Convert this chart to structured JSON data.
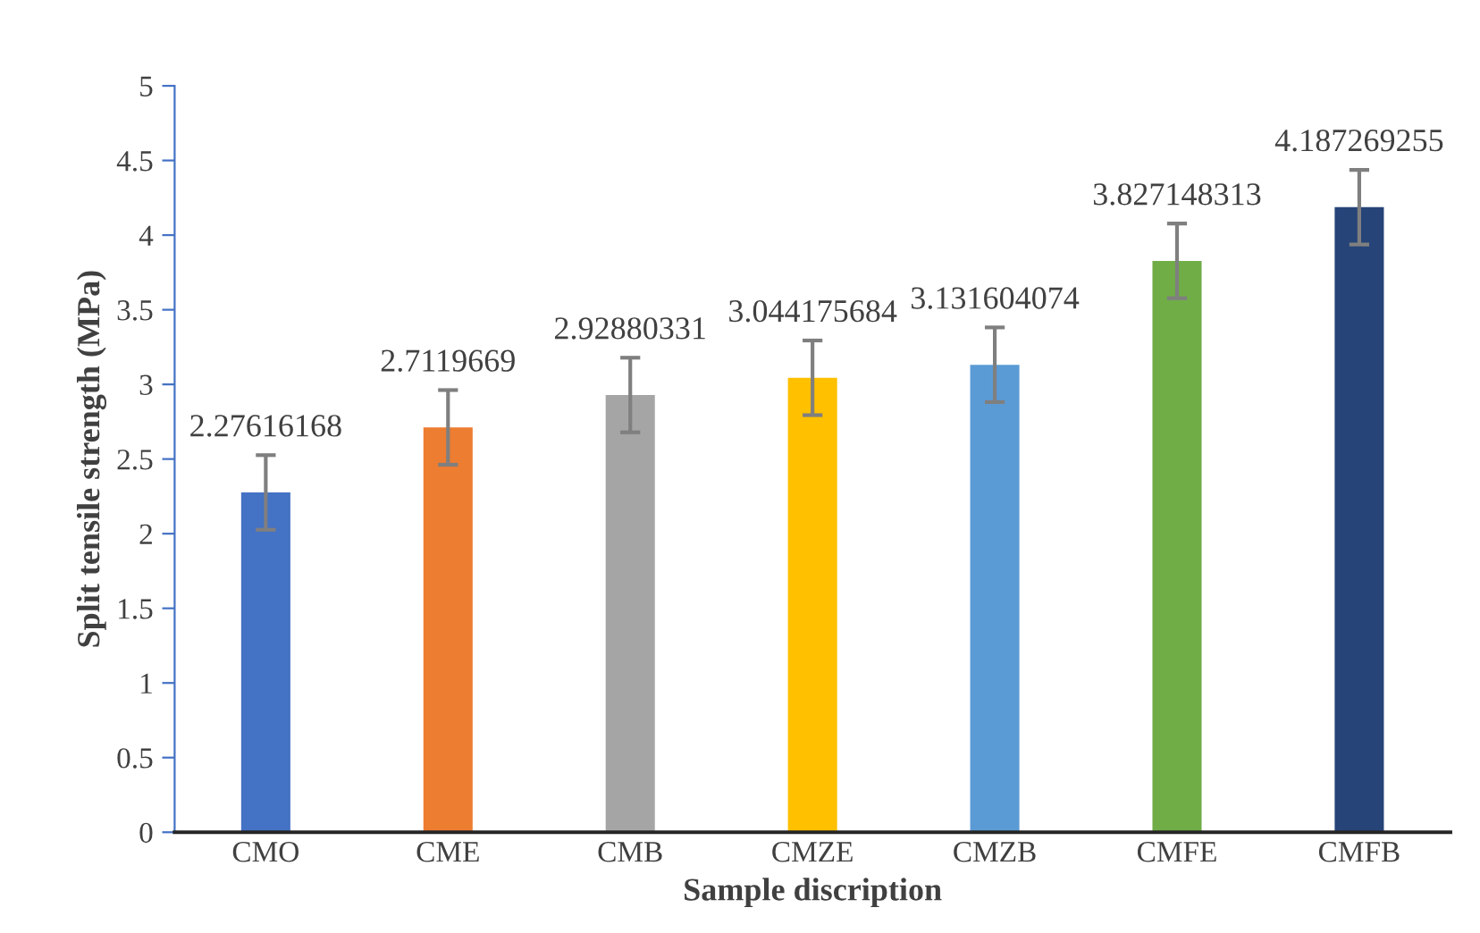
{
  "chart_data": {
    "type": "bar",
    "xlabel": "Sample discription",
    "ylabel": "Split tensile strength (MPa)",
    "categories": [
      "CMO",
      "CME",
      "CMB",
      "CMZE",
      "CMZB",
      "CMFE",
      "CMFB"
    ],
    "values": [
      2.27616168,
      2.7119669,
      2.92880331,
      3.044175684,
      3.131604074,
      3.827148313,
      4.187269255
    ],
    "colors": [
      "#4472c4",
      "#ed7d31",
      "#a5a5a5",
      "#ffc000",
      "#5b9bd5",
      "#70ad47",
      "#264478"
    ],
    "errors": [
      0.25,
      0.25,
      0.25,
      0.25,
      0.25,
      0.25,
      0.25
    ],
    "data_labels": true,
    "ylim": [
      0,
      5
    ],
    "yticks": [
      0,
      0.5,
      1,
      1.5,
      2,
      2.5,
      3,
      3.5,
      4,
      4.5,
      5
    ],
    "grid": false,
    "legend": false
  }
}
